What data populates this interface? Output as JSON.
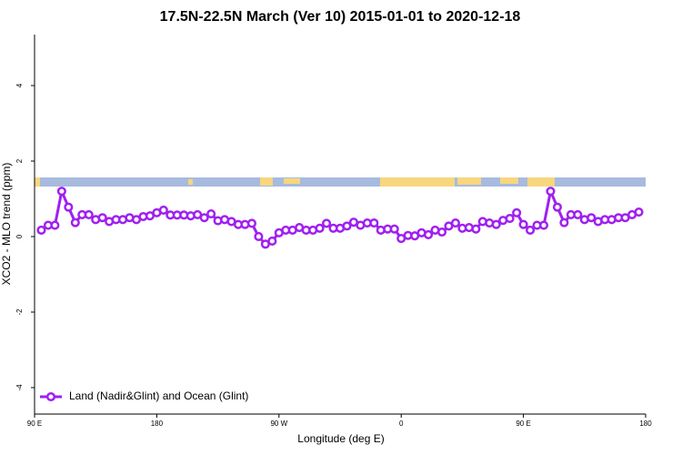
{
  "chart_data": {
    "type": "line",
    "title": "17.5N-22.5N March (Ver 10)   2015-01-01 to 2020-12-18",
    "x_label": "Longitude (deg E)",
    "y_label": "XCO2 - MLO trend (ppm)",
    "xlim": [
      90,
      540
    ],
    "xticks": [
      {
        "value": 90,
        "label": "90 E"
      },
      {
        "value": 180,
        "label": "180"
      },
      {
        "value": 270,
        "label": "90 W"
      },
      {
        "value": 360,
        "label": "0"
      },
      {
        "value": 450,
        "label": "90 E"
      },
      {
        "value": 540,
        "label": "180"
      }
    ],
    "ylim": [
      -4.7,
      5.35
    ],
    "yticks": [
      -4,
      -2,
      0,
      2,
      4
    ],
    "grid": false,
    "legend": "lower left",
    "x": [
      95,
      100,
      105,
      110,
      115,
      120,
      125,
      130,
      135,
      140,
      145,
      150,
      155,
      160,
      165,
      170,
      175,
      180,
      185,
      190,
      195,
      200,
      205,
      210,
      215,
      220,
      225,
      230,
      235,
      240,
      245,
      250,
      255,
      260,
      265,
      270,
      275,
      280,
      285,
      290,
      295,
      300,
      305,
      310,
      315,
      320,
      325,
      330,
      335,
      340,
      345,
      350,
      355,
      360,
      365,
      370,
      375,
      380,
      385,
      390,
      395,
      400,
      405,
      410,
      415,
      420,
      425,
      430,
      435,
      440,
      445,
      450,
      455,
      460,
      465,
      470,
      475,
      480,
      485,
      490,
      495,
      500,
      505,
      510,
      515,
      520,
      525,
      530,
      535
    ],
    "series": [
      {
        "name": "Land (Nadir&Glint) and Ocean (Glint)",
        "color": "#a020f0",
        "values": [
          0.17,
          0.3,
          0.3,
          1.2,
          0.78,
          0.37,
          0.58,
          0.58,
          0.45,
          0.5,
          0.4,
          0.45,
          0.45,
          0.5,
          0.45,
          0.53,
          0.55,
          0.63,
          0.7,
          0.57,
          0.57,
          0.57,
          0.55,
          0.58,
          0.5,
          0.6,
          0.42,
          0.45,
          0.4,
          0.32,
          0.32,
          0.35,
          0.0,
          -0.2,
          -0.12,
          0.1,
          0.17,
          0.17,
          0.24,
          0.17,
          0.17,
          0.22,
          0.35,
          0.22,
          0.22,
          0.28,
          0.38,
          0.3,
          0.36,
          0.36,
          0.17,
          0.2,
          0.2,
          -0.05,
          0.03,
          0.02,
          0.1,
          0.05,
          0.17,
          0.12,
          0.28,
          0.36,
          0.22,
          0.24,
          0.2,
          0.4,
          0.36,
          0.32,
          0.43,
          0.48,
          0.63,
          0.32,
          0.17,
          0.3,
          0.3,
          1.2,
          0.78,
          0.37,
          0.58,
          0.58,
          0.45,
          0.5,
          0.4,
          0.45,
          0.45,
          0.5,
          0.5,
          0.58,
          0.65
        ]
      }
    ]
  }
}
